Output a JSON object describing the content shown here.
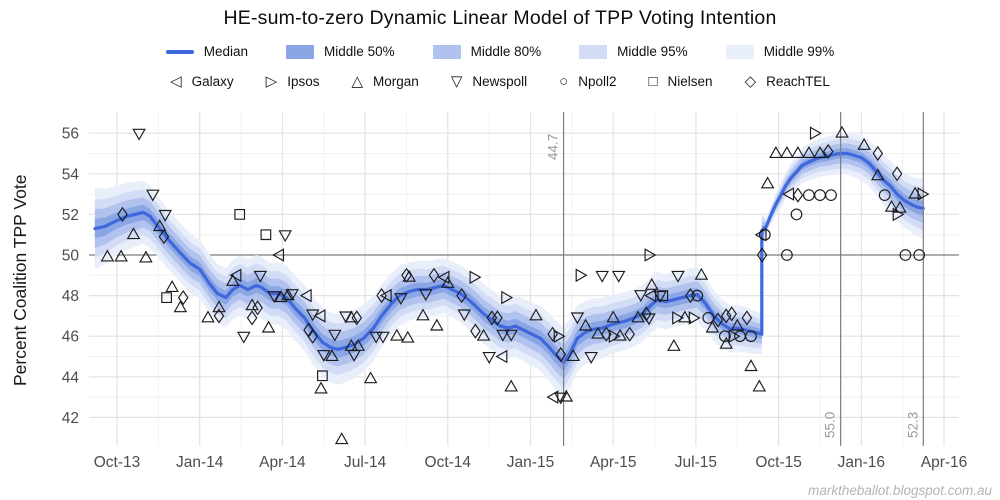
{
  "title": "HE-sum-to-zero Dynamic Linear Model of TPP Voting Intention",
  "watermark": "marktheballot.blogspot.com.au",
  "y_axis": {
    "title": "Percent Coalition TPP Vote",
    "ticks": [
      42,
      44,
      46,
      48,
      50,
      52,
      54,
      56
    ],
    "minor_ticks": [
      43,
      45,
      47,
      49,
      51,
      53,
      55
    ]
  },
  "x_axis": {
    "tick_labels": [
      "Oct-13",
      "Jan-14",
      "Apr-14",
      "Jul-14",
      "Oct-14",
      "Jan-15",
      "Apr-15",
      "Jul-15",
      "Oct-15",
      "Jan-16",
      "Apr-16"
    ],
    "tick_months": [
      0,
      3,
      6,
      9,
      12,
      15,
      18,
      21,
      24,
      27,
      30
    ],
    "minor_months": [
      1.5,
      4.5,
      7.5,
      10.5,
      13.5,
      16.5,
      19.5,
      22.5,
      25.5,
      28.5
    ]
  },
  "reference_lines": {
    "horizontal": {
      "value": 50,
      "color": "#808080"
    },
    "vertical": [
      {
        "month": 16.2,
        "label": "44.7",
        "label_pos": "top"
      },
      {
        "month": 26.25,
        "label": "55.0",
        "label_pos": "bottom"
      },
      {
        "month": 29.25,
        "label": "52.3",
        "label_pos": "bottom"
      }
    ],
    "label_color": "#9a9a9a",
    "line_color": "#7d7d7d"
  },
  "legend_bands": [
    {
      "label": "Median",
      "color": "#3f68dc",
      "type": "line"
    },
    {
      "label": "Middle 50%",
      "color": "#8ba6e5",
      "type": "band"
    },
    {
      "label": "Middle 80%",
      "color": "#b1c2ee",
      "type": "band"
    },
    {
      "label": "Middle 95%",
      "color": "#d2dcf5",
      "type": "band"
    },
    {
      "label": "Middle 99%",
      "color": "#e9eefb",
      "type": "band"
    }
  ],
  "chart_data": {
    "type": "line",
    "title": "HE-sum-to-zero Dynamic Linear Model of TPP Voting Intention",
    "ylabel": "Percent Coalition TPP Vote",
    "ylim": [
      41,
      57
    ],
    "x_unit": "months since Oct-2013 (0=Oct-13, 3=Jan-14, 30=Apr-16)",
    "grid": true,
    "legend_position": "top",
    "median_color": "#3f68dc",
    "marker_color": "#1b1b1b",
    "band_scales": {
      "50": 0.24,
      "80": 0.48,
      "95": 0.72,
      "99": 1.0
    },
    "band_colors": {
      "50": "#8ba6e5",
      "80": "#b1c2ee",
      "95": "#d2dcf5",
      "99": "#e9eefb"
    },
    "median": [
      [
        -0.8,
        51.3
      ],
      [
        -0.45,
        51.4
      ],
      [
        0,
        51.7
      ],
      [
        0.35,
        51.9
      ],
      [
        0.65,
        52.0
      ],
      [
        0.95,
        52.1
      ],
      [
        1.2,
        51.9
      ],
      [
        1.55,
        51.3
      ],
      [
        1.9,
        50.7
      ],
      [
        2.3,
        50.1
      ],
      [
        2.65,
        49.6
      ],
      [
        3.0,
        49.3
      ],
      [
        3.35,
        48.6
      ],
      [
        3.65,
        48.1
      ],
      [
        3.95,
        47.9
      ],
      [
        4.2,
        48.3
      ],
      [
        4.45,
        48.5
      ],
      [
        4.75,
        48.3
      ],
      [
        5.05,
        48.5
      ],
      [
        5.25,
        48.4
      ],
      [
        5.55,
        48.1
      ],
      [
        5.85,
        48.1
      ],
      [
        6.15,
        47.9
      ],
      [
        6.45,
        47.4
      ],
      [
        6.8,
        46.9
      ],
      [
        7.1,
        46.3
      ],
      [
        7.45,
        45.7
      ],
      [
        7.75,
        45.45
      ],
      [
        8.0,
        45.35
      ],
      [
        8.3,
        45.45
      ],
      [
        8.6,
        45.6
      ],
      [
        8.95,
        45.9
      ],
      [
        9.3,
        46.4
      ],
      [
        9.6,
        47.0
      ],
      [
        9.95,
        47.6
      ],
      [
        10.25,
        48.0
      ],
      [
        10.6,
        48.2
      ],
      [
        10.9,
        48.3
      ],
      [
        11.25,
        48.3
      ],
      [
        11.55,
        48.4
      ],
      [
        11.85,
        48.5
      ],
      [
        12.15,
        48.3
      ],
      [
        12.45,
        48.1
      ],
      [
        12.75,
        47.8
      ],
      [
        13.0,
        47.5
      ],
      [
        13.3,
        47.1
      ],
      [
        13.6,
        46.8
      ],
      [
        13.9,
        46.5
      ],
      [
        14.2,
        46.4
      ],
      [
        14.45,
        46.5
      ],
      [
        14.75,
        46.3
      ],
      [
        15.05,
        46.1
      ],
      [
        15.35,
        45.9
      ],
      [
        15.65,
        45.5
      ],
      [
        15.9,
        45.1
      ],
      [
        16.2,
        44.7
      ],
      [
        16.45,
        45.2
      ],
      [
        16.7,
        45.9
      ],
      [
        17.0,
        46.2
      ],
      [
        17.3,
        46.35
      ],
      [
        17.6,
        46.4
      ],
      [
        17.9,
        46.55
      ],
      [
        18.15,
        46.65
      ],
      [
        18.45,
        46.75
      ],
      [
        18.75,
        46.9
      ],
      [
        19.05,
        47.1
      ],
      [
        19.35,
        47.5
      ],
      [
        19.6,
        47.8
      ],
      [
        19.9,
        47.7
      ],
      [
        20.2,
        47.8
      ],
      [
        20.5,
        47.9
      ],
      [
        20.8,
        48.0
      ],
      [
        21.05,
        48.05
      ],
      [
        21.35,
        47.6
      ],
      [
        21.65,
        47.0
      ],
      [
        21.95,
        46.6
      ],
      [
        22.25,
        46.35
      ],
      [
        22.5,
        46.4
      ],
      [
        22.8,
        46.3
      ],
      [
        23.1,
        46.2
      ],
      [
        23.39,
        46.1
      ],
      [
        23.39,
        51.2
      ],
      [
        23.55,
        51.4
      ],
      [
        23.7,
        51.9
      ],
      [
        23.9,
        52.5
      ],
      [
        24.1,
        53.0
      ],
      [
        24.25,
        53.4
      ],
      [
        24.45,
        53.8
      ],
      [
        24.65,
        54.1
      ],
      [
        24.85,
        54.4
      ],
      [
        25.05,
        54.55
      ],
      [
        25.3,
        54.7
      ],
      [
        25.5,
        54.8
      ],
      [
        25.75,
        54.85
      ],
      [
        26.0,
        54.95
      ],
      [
        26.25,
        55.0
      ],
      [
        26.5,
        55.0
      ],
      [
        26.75,
        54.9
      ],
      [
        27.0,
        54.8
      ],
      [
        27.3,
        54.5
      ],
      [
        27.55,
        54.1
      ],
      [
        27.8,
        53.7
      ],
      [
        28.05,
        53.4
      ],
      [
        28.3,
        53.0
      ],
      [
        28.55,
        52.7
      ],
      [
        28.8,
        52.5
      ],
      [
        29.05,
        52.35
      ],
      [
        29.25,
        52.3
      ]
    ],
    "band_halfwidth_99": [
      [
        -0.8,
        2.0
      ],
      [
        0,
        1.7
      ],
      [
        1,
        1.55
      ],
      [
        2,
        1.45
      ],
      [
        4,
        1.45
      ],
      [
        5,
        1.5
      ],
      [
        6,
        1.55
      ],
      [
        7,
        1.65
      ],
      [
        8,
        1.75
      ],
      [
        9,
        1.65
      ],
      [
        10,
        1.5
      ],
      [
        11,
        1.4
      ],
      [
        12,
        1.35
      ],
      [
        13,
        1.45
      ],
      [
        14,
        1.5
      ],
      [
        15,
        1.55
      ],
      [
        16.2,
        1.75
      ],
      [
        17,
        1.55
      ],
      [
        18,
        1.45
      ],
      [
        19,
        1.4
      ],
      [
        20,
        1.35
      ],
      [
        21,
        1.35
      ],
      [
        22,
        1.2
      ],
      [
        23,
        1.1
      ],
      [
        23.39,
        1.0
      ],
      [
        23.42,
        0.35
      ],
      [
        23.7,
        0.45
      ],
      [
        24,
        0.6
      ],
      [
        24.5,
        0.75
      ],
      [
        25,
        0.9
      ],
      [
        26,
        1.0
      ],
      [
        26.5,
        1.05
      ],
      [
        27,
        1.1
      ],
      [
        28,
        1.25
      ],
      [
        29,
        1.4
      ],
      [
        29.25,
        1.5
      ]
    ],
    "pollsters": [
      {
        "name": "Galaxy",
        "marker": "triangle-left",
        "glyph": "◁",
        "points": [
          [
            4.35,
            49.0
          ],
          [
            5.9,
            50.0
          ],
          [
            6.9,
            48.0
          ],
          [
            7.4,
            47.0
          ],
          [
            9.8,
            48.0
          ],
          [
            11.9,
            48.9
          ],
          [
            14.0,
            45.0
          ],
          [
            15.85,
            43.0
          ],
          [
            19.4,
            48.0
          ],
          [
            23.4,
            51.0
          ],
          [
            24.4,
            53.0
          ]
        ]
      },
      {
        "name": "Ipsos",
        "marker": "triangle-right",
        "glyph": "▷",
        "points": [
          [
            12.95,
            48.9
          ],
          [
            14.1,
            47.9
          ],
          [
            16.0,
            46.0
          ],
          [
            16.8,
            49.0
          ],
          [
            18.0,
            46.0
          ],
          [
            19.3,
            50.0
          ],
          [
            20.3,
            46.9
          ],
          [
            20.9,
            46.9
          ],
          [
            22.35,
            46.0
          ],
          [
            25.3,
            56.0
          ],
          [
            28.3,
            52.0
          ],
          [
            29.2,
            53.0
          ]
        ]
      },
      {
        "name": "Morgan",
        "marker": "triangle-up",
        "glyph": "△",
        "points": [
          [
            -0.35,
            49.9
          ],
          [
            0.15,
            49.9
          ],
          [
            0.6,
            51.0
          ],
          [
            1.05,
            49.85
          ],
          [
            1.55,
            51.4
          ],
          [
            2.0,
            48.4
          ],
          [
            2.3,
            47.4
          ],
          [
            3.3,
            46.9
          ],
          [
            3.7,
            47.4
          ],
          [
            4.2,
            48.7
          ],
          [
            4.9,
            47.5
          ],
          [
            5.5,
            46.4
          ],
          [
            5.95,
            47.9
          ],
          [
            6.2,
            48.0
          ],
          [
            7.4,
            43.4
          ],
          [
            7.8,
            45.0
          ],
          [
            8.15,
            40.9
          ],
          [
            8.5,
            46.9
          ],
          [
            8.5,
            45.5
          ],
          [
            8.75,
            45.5
          ],
          [
            9.2,
            43.9
          ],
          [
            10.15,
            46.0
          ],
          [
            10.55,
            45.9
          ],
          [
            10.6,
            48.9
          ],
          [
            11.1,
            47.0
          ],
          [
            11.6,
            46.5
          ],
          [
            12.0,
            48.6
          ],
          [
            13.3,
            46.0
          ],
          [
            14.3,
            43.5
          ],
          [
            15.2,
            47.0
          ],
          [
            16.3,
            43.0
          ],
          [
            16.55,
            45.0
          ],
          [
            17.0,
            46.5
          ],
          [
            17.45,
            46.1
          ],
          [
            18.0,
            46.9
          ],
          [
            18.25,
            46.0
          ],
          [
            18.9,
            46.9
          ],
          [
            19.4,
            48.5
          ],
          [
            20.2,
            45.5
          ],
          [
            20.6,
            46.9
          ],
          [
            21.2,
            49.0
          ],
          [
            21.6,
            46.4
          ],
          [
            22.1,
            45.6
          ],
          [
            22.5,
            46.5
          ],
          [
            23.0,
            44.5
          ],
          [
            23.3,
            43.5
          ],
          [
            23.6,
            53.5
          ],
          [
            23.9,
            55.0
          ],
          [
            24.3,
            55.0
          ],
          [
            24.7,
            55.0
          ],
          [
            25.1,
            55.0
          ],
          [
            25.5,
            55.0
          ],
          [
            26.3,
            56.0
          ],
          [
            27.1,
            55.4
          ],
          [
            27.6,
            53.9
          ],
          [
            28.1,
            52.35
          ],
          [
            28.4,
            52.3
          ],
          [
            28.95,
            53.0
          ]
        ]
      },
      {
        "name": "Newspoll",
        "marker": "triangle-down",
        "glyph": "▽",
        "points": [
          [
            0.8,
            56.0
          ],
          [
            1.3,
            53.0
          ],
          [
            1.75,
            52.0
          ],
          [
            4.6,
            46.0
          ],
          [
            5.2,
            49.0
          ],
          [
            5.7,
            48.0
          ],
          [
            6.1,
            51.0
          ],
          [
            6.35,
            48.1
          ],
          [
            7.1,
            47.1
          ],
          [
            7.5,
            45.1
          ],
          [
            7.9,
            46.1
          ],
          [
            8.3,
            47.0
          ],
          [
            8.6,
            45.1
          ],
          [
            9.4,
            46.0
          ],
          [
            9.65,
            46.0
          ],
          [
            10.3,
            47.9
          ],
          [
            11.2,
            48.1
          ],
          [
            12.6,
            47.1
          ],
          [
            13.5,
            45.0
          ],
          [
            14.0,
            46.1
          ],
          [
            14.3,
            46.1
          ],
          [
            16.1,
            43.0
          ],
          [
            16.7,
            46.95
          ],
          [
            17.2,
            45.0
          ],
          [
            17.6,
            49.0
          ],
          [
            18.2,
            49.0
          ],
          [
            19.0,
            48.05
          ],
          [
            19.3,
            46.9
          ],
          [
            19.7,
            48.0
          ],
          [
            20.35,
            49.0
          ]
        ]
      },
      {
        "name": "Npoll2",
        "marker": "circle",
        "glyph": "○",
        "points": [
          [
            21.05,
            48.0
          ],
          [
            21.45,
            46.9
          ],
          [
            22.05,
            46.0
          ],
          [
            22.6,
            46.0
          ],
          [
            23.0,
            46.0
          ],
          [
            23.5,
            51.0
          ],
          [
            24.3,
            50.0
          ],
          [
            24.65,
            52.0
          ],
          [
            25.1,
            52.95
          ],
          [
            25.5,
            52.95
          ],
          [
            25.9,
            52.95
          ],
          [
            27.85,
            52.95
          ],
          [
            28.6,
            50.0
          ],
          [
            29.1,
            50.0
          ]
        ]
      },
      {
        "name": "Nielsen",
        "marker": "square",
        "glyph": "□",
        "points": [
          [
            1.8,
            47.9
          ],
          [
            4.45,
            52.0
          ],
          [
            5.4,
            51.0
          ],
          [
            7.45,
            44.05
          ],
          [
            19.8,
            48.0
          ]
        ]
      },
      {
        "name": "ReachTEL",
        "marker": "diamond",
        "glyph": "◇",
        "points": [
          [
            0.2,
            52.0
          ],
          [
            1.7,
            50.9
          ],
          [
            2.4,
            47.9
          ],
          [
            3.7,
            47.0
          ],
          [
            4.9,
            46.9
          ],
          [
            5.1,
            47.4
          ],
          [
            6.95,
            46.3
          ],
          [
            7.1,
            46.0
          ],
          [
            8.7,
            46.9
          ],
          [
            9.6,
            48.0
          ],
          [
            10.5,
            49.0
          ],
          [
            11.5,
            49.0
          ],
          [
            12.5,
            48.0
          ],
          [
            13.0,
            46.25
          ],
          [
            13.6,
            46.9
          ],
          [
            13.8,
            46.9
          ],
          [
            15.8,
            46.1
          ],
          [
            16.1,
            45.1
          ],
          [
            17.75,
            46.1
          ],
          [
            18.6,
            46.1
          ],
          [
            19.2,
            47.1
          ],
          [
            20.8,
            48.0
          ],
          [
            21.8,
            46.8
          ],
          [
            22.1,
            47.0
          ],
          [
            22.3,
            47.1
          ],
          [
            22.85,
            46.9
          ],
          [
            23.4,
            50.0
          ],
          [
            24.7,
            52.95
          ],
          [
            25.8,
            55.1
          ],
          [
            27.6,
            55.0
          ],
          [
            28.3,
            54.0
          ]
        ]
      }
    ]
  }
}
